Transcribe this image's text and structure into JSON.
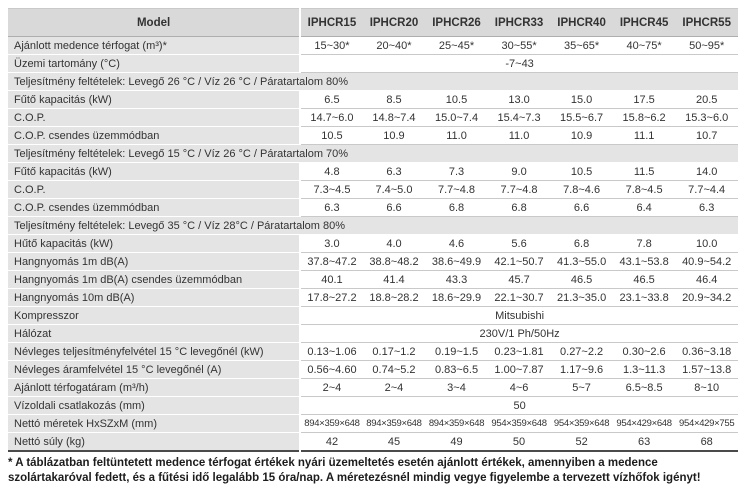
{
  "colors": {
    "header_bg": "#d9d9d9",
    "label_bg": "#e4e4e4",
    "section_bg": "#e4e4e4",
    "border": "#c9c9c9",
    "bottom_border": "#4a4a4a",
    "text": "#333333"
  },
  "table": {
    "header": {
      "model_label": "Model",
      "models": [
        "IPHCR15",
        "IPHCR20",
        "IPHCR26",
        "IPHCR33",
        "IPHCR40",
        "IPHCR45",
        "IPHCR55"
      ]
    },
    "rows": [
      {
        "type": "data",
        "key": "ajanlott-medence-terfogat",
        "label": "Ajánlott medence térfogat (m³)*",
        "values": [
          "15~30*",
          "20~40*",
          "25~45*",
          "30~55*",
          "35~65*",
          "40~75*",
          "50~95*"
        ]
      },
      {
        "type": "span",
        "key": "uzemi-tartomany",
        "label": "Üzemi tartomány (°C)",
        "value": "-7~43"
      },
      {
        "type": "section",
        "key": "feltetelek-26-26-80",
        "label": "Teljesítmény feltételek: Levegő 26 °C / Víz 26 °C / Páratartalom 80%"
      },
      {
        "type": "data",
        "key": "futo-kapacitas-1",
        "label": "Fűtő kapacitás (kW)",
        "values": [
          "6.5",
          "8.5",
          "10.5",
          "13.0",
          "15.0",
          "17.5",
          "20.5"
        ]
      },
      {
        "type": "data",
        "key": "cop-1",
        "label": "C.O.P.",
        "values": [
          "14.7~6.0",
          "14.8~7.4",
          "15.0~7.4",
          "15.4~7.3",
          "15.5~6.7",
          "15.8~6.2",
          "15.3~6.0"
        ]
      },
      {
        "type": "data",
        "key": "cop-csendes-1",
        "label": "C.O.P. csendes üzemmódban",
        "values": [
          "10.5",
          "10.9",
          "11.0",
          "11.0",
          "10.9",
          "11.1",
          "10.7"
        ]
      },
      {
        "type": "section",
        "key": "feltetelek-15-26-70",
        "label": "Teljesítmény feltételek: Levegő 15 °C / Víz 26 °C / Páratartalom 70%"
      },
      {
        "type": "data",
        "key": "futo-kapacitas-2",
        "label": "Fűtő kapacitás (kW)",
        "values": [
          "4.8",
          "6.3",
          "7.3",
          "9.0",
          "10.5",
          "11.5",
          "14.0"
        ]
      },
      {
        "type": "data",
        "key": "cop-2",
        "label": "C.O.P.",
        "values": [
          "7.3~4.5",
          "7.4~5.0",
          "7.7~4.8",
          "7.7~4.8",
          "7.8~4.6",
          "7.8~4.5",
          "7.7~4.4"
        ]
      },
      {
        "type": "data",
        "key": "cop-csendes-2",
        "label": "C.O.P. csendes üzemmódban",
        "values": [
          "6.3",
          "6.6",
          "6.8",
          "6.8",
          "6.6",
          "6.4",
          "6.3"
        ]
      },
      {
        "type": "section",
        "key": "feltetelek-35-28-80",
        "label": "Teljesítmény feltételek: Levegő 35 °C / Víz 28°C / Páratartalom 80%"
      },
      {
        "type": "data",
        "key": "huto-kapacitas",
        "label": "Hűtő kapacitás (kW)",
        "values": [
          "3.0",
          "4.0",
          "4.6",
          "5.6",
          "6.8",
          "7.8",
          "10.0"
        ]
      },
      {
        "type": "data",
        "key": "hangnyomas-1m",
        "label": "Hangnyomás 1m dB(A)",
        "values": [
          "37.8~47.2",
          "38.8~48.2",
          "38.6~49.9",
          "42.1~50.7",
          "41.3~55.0",
          "43.1~53.8",
          "40.9~54.2"
        ]
      },
      {
        "type": "data",
        "key": "hangnyomas-1m-csendes",
        "label": "Hangnyomás 1m dB(A) csendes üzemmódban",
        "values": [
          "40.1",
          "41.4",
          "43.3",
          "45.7",
          "46.5",
          "46.5",
          "46.4"
        ]
      },
      {
        "type": "data",
        "key": "hangnyomas-10m",
        "label": "Hangnyomás 10m dB(A)",
        "values": [
          "17.8~27.2",
          "18.8~28.2",
          "18.6~29.9",
          "22.1~30.7",
          "21.3~35.0",
          "23.1~33.8",
          "20.9~34.2"
        ]
      },
      {
        "type": "span",
        "key": "kompresszor",
        "label": "Kompresszor",
        "value": "Mitsubishi"
      },
      {
        "type": "span",
        "key": "halozat",
        "label": "Hálózat",
        "value": "230V/1 Ph/50Hz"
      },
      {
        "type": "data",
        "key": "nevleges-teljesitmenyfelvetel",
        "label": "Névleges teljesítményfelvétel 15 °C levegőnél (kW)",
        "values": [
          "0.13~1.06",
          "0.17~1.2",
          "0.19~1.5",
          "0.23~1.81",
          "0.27~2.2",
          "0.30~2.6",
          "0.36~3.18"
        ]
      },
      {
        "type": "data",
        "key": "nevleges-aramfelvetel",
        "label": "Névleges áramfelvétel 15 °C levegőnél (A)",
        "values": [
          "0.56~4.60",
          "0.74~5.2",
          "0.83~6.5",
          "1.00~7.87",
          "1.17~9.6",
          "1.3~11.3",
          "1.57~13.8"
        ]
      },
      {
        "type": "data",
        "key": "ajanlott-terfogataram",
        "label": "Ajánlott térfogatáram (m³/h)",
        "values": [
          "2~4",
          "2~4",
          "3~4",
          "4~6",
          "5~7",
          "6.5~8.5",
          "8~10"
        ]
      },
      {
        "type": "span",
        "key": "vizoldali-csatlakozas",
        "label": "Vízoldali csatlakozás (mm)",
        "value": "50"
      },
      {
        "type": "data",
        "key": "netto-meretek-hxszxm",
        "label": "Nettó méretek HxSZxM (mm)",
        "small": true,
        "values": [
          "894×359×648",
          "894×359×648",
          "894×359×648",
          "954×359×648",
          "954×359×648",
          "954×429×648",
          "954×429×755"
        ]
      },
      {
        "type": "data",
        "key": "netto-suly",
        "label": "Nettó súly (kg)",
        "values": [
          "42",
          "45",
          "49",
          "50",
          "52",
          "63",
          "68"
        ]
      }
    ]
  },
  "footnote": "* A táblázatban feltüntetett medence térfogat értékek nyári üzemeltetés esetén ajánlott értékek, amennyiben a medence szolártakaróval fedett, és a fűtési idő legalább 15 óra/nap. A méretezésnél mindig vegye figyelembe a tervezett vízhőfok igényt!"
}
